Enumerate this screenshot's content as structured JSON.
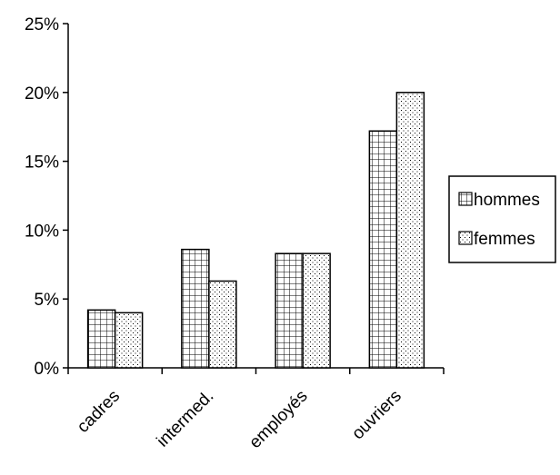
{
  "chart_data": {
    "type": "bar",
    "categories": [
      "cadres",
      "intermed.",
      "employés",
      "ouvriers"
    ],
    "series": [
      {
        "name": "hommes",
        "values": [
          4.2,
          8.6,
          8.3,
          17.2
        ],
        "pattern": "grid"
      },
      {
        "name": "femmes",
        "values": [
          4.0,
          6.3,
          8.3,
          20.0
        ],
        "pattern": "dots"
      }
    ],
    "y_ticks": [
      "0%",
      "5%",
      "10%",
      "15%",
      "20%",
      "25%"
    ],
    "ylim": [
      0,
      25
    ],
    "y_unit": "%",
    "title": "",
    "xlabel": "",
    "ylabel": "",
    "grid": false,
    "legend_position": "right",
    "colors": {
      "bar_fill": "#ffffff",
      "stroke": "#000000"
    }
  }
}
